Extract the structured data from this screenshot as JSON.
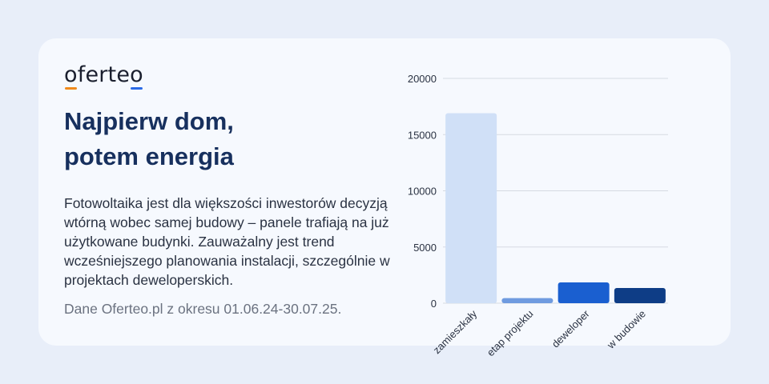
{
  "brand": {
    "logo_o": "o",
    "logo_mid": "ferte",
    "logo_end": "o"
  },
  "headline": {
    "line1": "Najpierw dom,",
    "line2": "potem energia"
  },
  "body": "Fotowoltaika jest dla większości inwestorów decyzją wtórną wobec samej budowy – panele trafiają na już użytkowane budynki. Zauważalny jest trend wcześniejszego planowania instalacji, szczególnie w projektach deweloperskich.",
  "source": "Dane Oferteo.pl z okresu 01.06.24-30.07.25.",
  "colors": {
    "background": "#e8eef9",
    "card": "#f6f9fe",
    "headline": "#17305e",
    "logo_accent_orange": "#f08a1c",
    "logo_accent_blue": "#2b6ae6"
  },
  "chart_data": {
    "type": "bar",
    "categories": [
      "zamieszkały",
      "etap projektu",
      "deweloper",
      "w budowie"
    ],
    "values": [
      16900,
      450,
      1850,
      1350
    ],
    "bar_colors": [
      "#d0e0f7",
      "#6f9be0",
      "#1a5fd0",
      "#0e3d86"
    ],
    "ylim": [
      0,
      20000
    ],
    "yticks": [
      0,
      5000,
      10000,
      15000,
      20000
    ],
    "grid": true,
    "legend": "none",
    "xlabel": "",
    "ylabel": ""
  }
}
